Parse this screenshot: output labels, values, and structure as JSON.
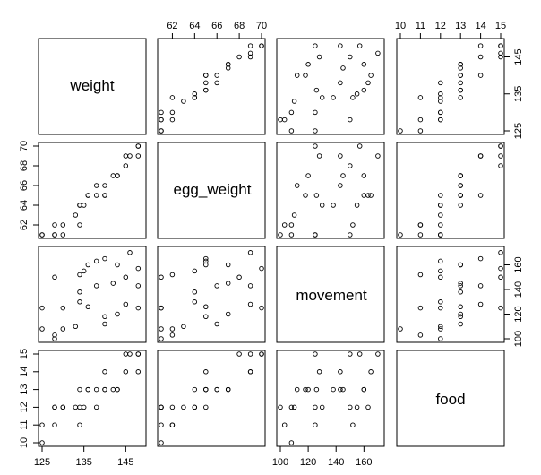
{
  "chart_data": {
    "type": "scatter_matrix",
    "variables": [
      "weight",
      "egg_weight",
      "movement",
      "food"
    ],
    "ranges": {
      "weight": [
        125,
        149
      ],
      "egg_weight": [
        61,
        70
      ],
      "movement": [
        100,
        172
      ],
      "food": [
        10,
        15
      ]
    },
    "ticks": {
      "weight": [
        125,
        135,
        145
      ],
      "egg_weight": [
        62,
        64,
        66,
        68,
        70
      ],
      "movement": [
        100,
        120,
        140,
        160
      ],
      "food": [
        10,
        11,
        12,
        13,
        14,
        15
      ]
    },
    "tick_labels": {
      "weight": [
        "125",
        "135",
        "145"
      ],
      "egg_weight": [
        "62",
        "64",
        "66",
        "68",
        "70"
      ],
      "movement": [
        "100",
        "120",
        "140",
        "160"
      ],
      "food": [
        "10",
        "11",
        "12",
        "13",
        "14",
        "15"
      ]
    },
    "axis_sides": {
      "weight": "bottom",
      "egg_weight": [
        "top",
        "left"
      ],
      "movement": [
        "bottom",
        "right"
      ],
      "food": [
        "top",
        "right"
      ]
    },
    "observations": [
      {
        "weight": 125,
        "egg_weight": 61,
        "movement": 108,
        "food": 10
      },
      {
        "weight": 125,
        "egg_weight": 61,
        "movement": 125,
        "food": 11
      },
      {
        "weight": 128,
        "egg_weight": 62,
        "movement": 103,
        "food": 11
      },
      {
        "weight": 128,
        "egg_weight": 61,
        "movement": 100,
        "food": 12
      },
      {
        "weight": 128,
        "egg_weight": 61,
        "movement": 150,
        "food": 12
      },
      {
        "weight": 130,
        "egg_weight": 62,
        "movement": 108,
        "food": 12
      },
      {
        "weight": 130,
        "egg_weight": 61,
        "movement": 125,
        "food": 12
      },
      {
        "weight": 133,
        "egg_weight": 63,
        "movement": 110,
        "food": 12
      },
      {
        "weight": 134,
        "egg_weight": 62,
        "movement": 152,
        "food": 11
      },
      {
        "weight": 134,
        "egg_weight": 64,
        "movement": 138,
        "food": 13
      },
      {
        "weight": 134,
        "egg_weight": 64,
        "movement": 130,
        "food": 12
      },
      {
        "weight": 135,
        "egg_weight": 64,
        "movement": 155,
        "food": 12
      },
      {
        "weight": 136,
        "egg_weight": 65,
        "movement": 126,
        "food": 13
      },
      {
        "weight": 136,
        "egg_weight": 65,
        "movement": 160,
        "food": 13
      },
      {
        "weight": 138,
        "egg_weight": 66,
        "movement": 143,
        "food": 13
      },
      {
        "weight": 138,
        "egg_weight": 65,
        "movement": 163,
        "food": 12
      },
      {
        "weight": 140,
        "egg_weight": 66,
        "movement": 112,
        "food": 13
      },
      {
        "weight": 140,
        "egg_weight": 65,
        "movement": 118,
        "food": 13
      },
      {
        "weight": 140,
        "egg_weight": 65,
        "movement": 165,
        "food": 14
      },
      {
        "weight": 142,
        "egg_weight": 67,
        "movement": 145,
        "food": 13
      },
      {
        "weight": 143,
        "egg_weight": 67,
        "movement": 120,
        "food": 13
      },
      {
        "weight": 143,
        "egg_weight": 67,
        "movement": 160,
        "food": 13
      },
      {
        "weight": 145,
        "egg_weight": 68,
        "movement": 150,
        "food": 15
      },
      {
        "weight": 145,
        "egg_weight": 69,
        "movement": 128,
        "food": 14
      },
      {
        "weight": 146,
        "egg_weight": 69,
        "movement": 170,
        "food": 15
      },
      {
        "weight": 148,
        "egg_weight": 70,
        "movement": 157,
        "food": 15
      },
      {
        "weight": 148,
        "egg_weight": 69,
        "movement": 143,
        "food": 14
      },
      {
        "weight": 148,
        "egg_weight": 70,
        "movement": 125,
        "food": 15
      }
    ]
  }
}
